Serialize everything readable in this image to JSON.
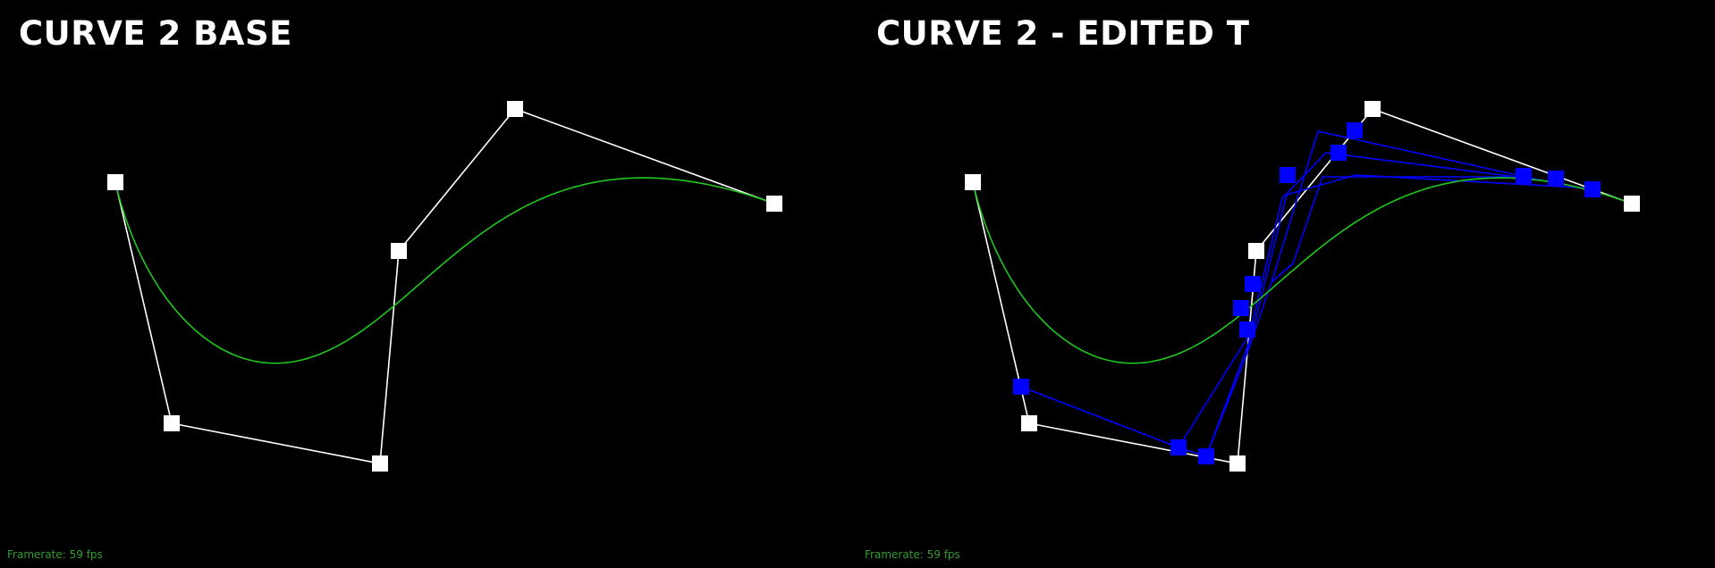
{
  "panels": [
    {
      "title": "CURVE 2 BASE",
      "framerate_text": "Framerate: 59 fps",
      "control_points": [
        [
          129,
          204
        ],
        [
          192,
          474
        ],
        [
          425,
          519
        ],
        [
          446,
          281
        ],
        [
          576,
          122
        ],
        [
          866,
          228
        ]
      ],
      "construction_lines": [],
      "construction_points": []
    },
    {
      "title": "CURVE 2 - EDITED T",
      "framerate_text": "Framerate: 59 fps",
      "control_points": [
        [
          129,
          204
        ],
        [
          192,
          474
        ],
        [
          425,
          519
        ],
        [
          446,
          281
        ],
        [
          576,
          122
        ],
        [
          866,
          228
        ]
      ],
      "construction_lines": [
        [
          [
            183,
            433
          ],
          [
            359,
            501
          ],
          [
            443,
            367
          ],
          [
            480,
            218
          ],
          [
            557,
            196
          ],
          [
            826,
            211
          ]
        ],
        [
          [
            359,
            501
          ],
          [
            390,
            511
          ],
          [
            442,
            372
          ]
        ],
        [
          [
            390,
            511
          ],
          [
            436,
            395
          ],
          [
            441,
            363
          ],
          [
            475,
            222
          ],
          [
            524,
            171
          ],
          [
            745,
            199
          ]
        ],
        [
          [
            436,
            395
          ],
          [
            463,
            316
          ],
          [
            515,
            147
          ],
          [
            779,
            205
          ]
        ],
        [
          [
            463,
            316
          ],
          [
            487,
            295
          ],
          [
            520,
            198
          ],
          [
            729,
            198
          ]
        ]
      ],
      "construction_points": [
        [
          183,
          433
        ],
        [
          359,
          501
        ],
        [
          390,
          511
        ],
        [
          436,
          369
        ],
        [
          442,
          318
        ],
        [
          429,
          345
        ],
        [
          481,
          196
        ],
        [
          538,
          171
        ],
        [
          556,
          146
        ],
        [
          745,
          197
        ],
        [
          781,
          200
        ],
        [
          822,
          212
        ]
      ]
    }
  ],
  "colors": {
    "background": "#000000",
    "control_polygon": "#ffffff",
    "curve": "#1ec81e",
    "construction": "#0000ff",
    "fps_text": "#2f9e2f"
  }
}
